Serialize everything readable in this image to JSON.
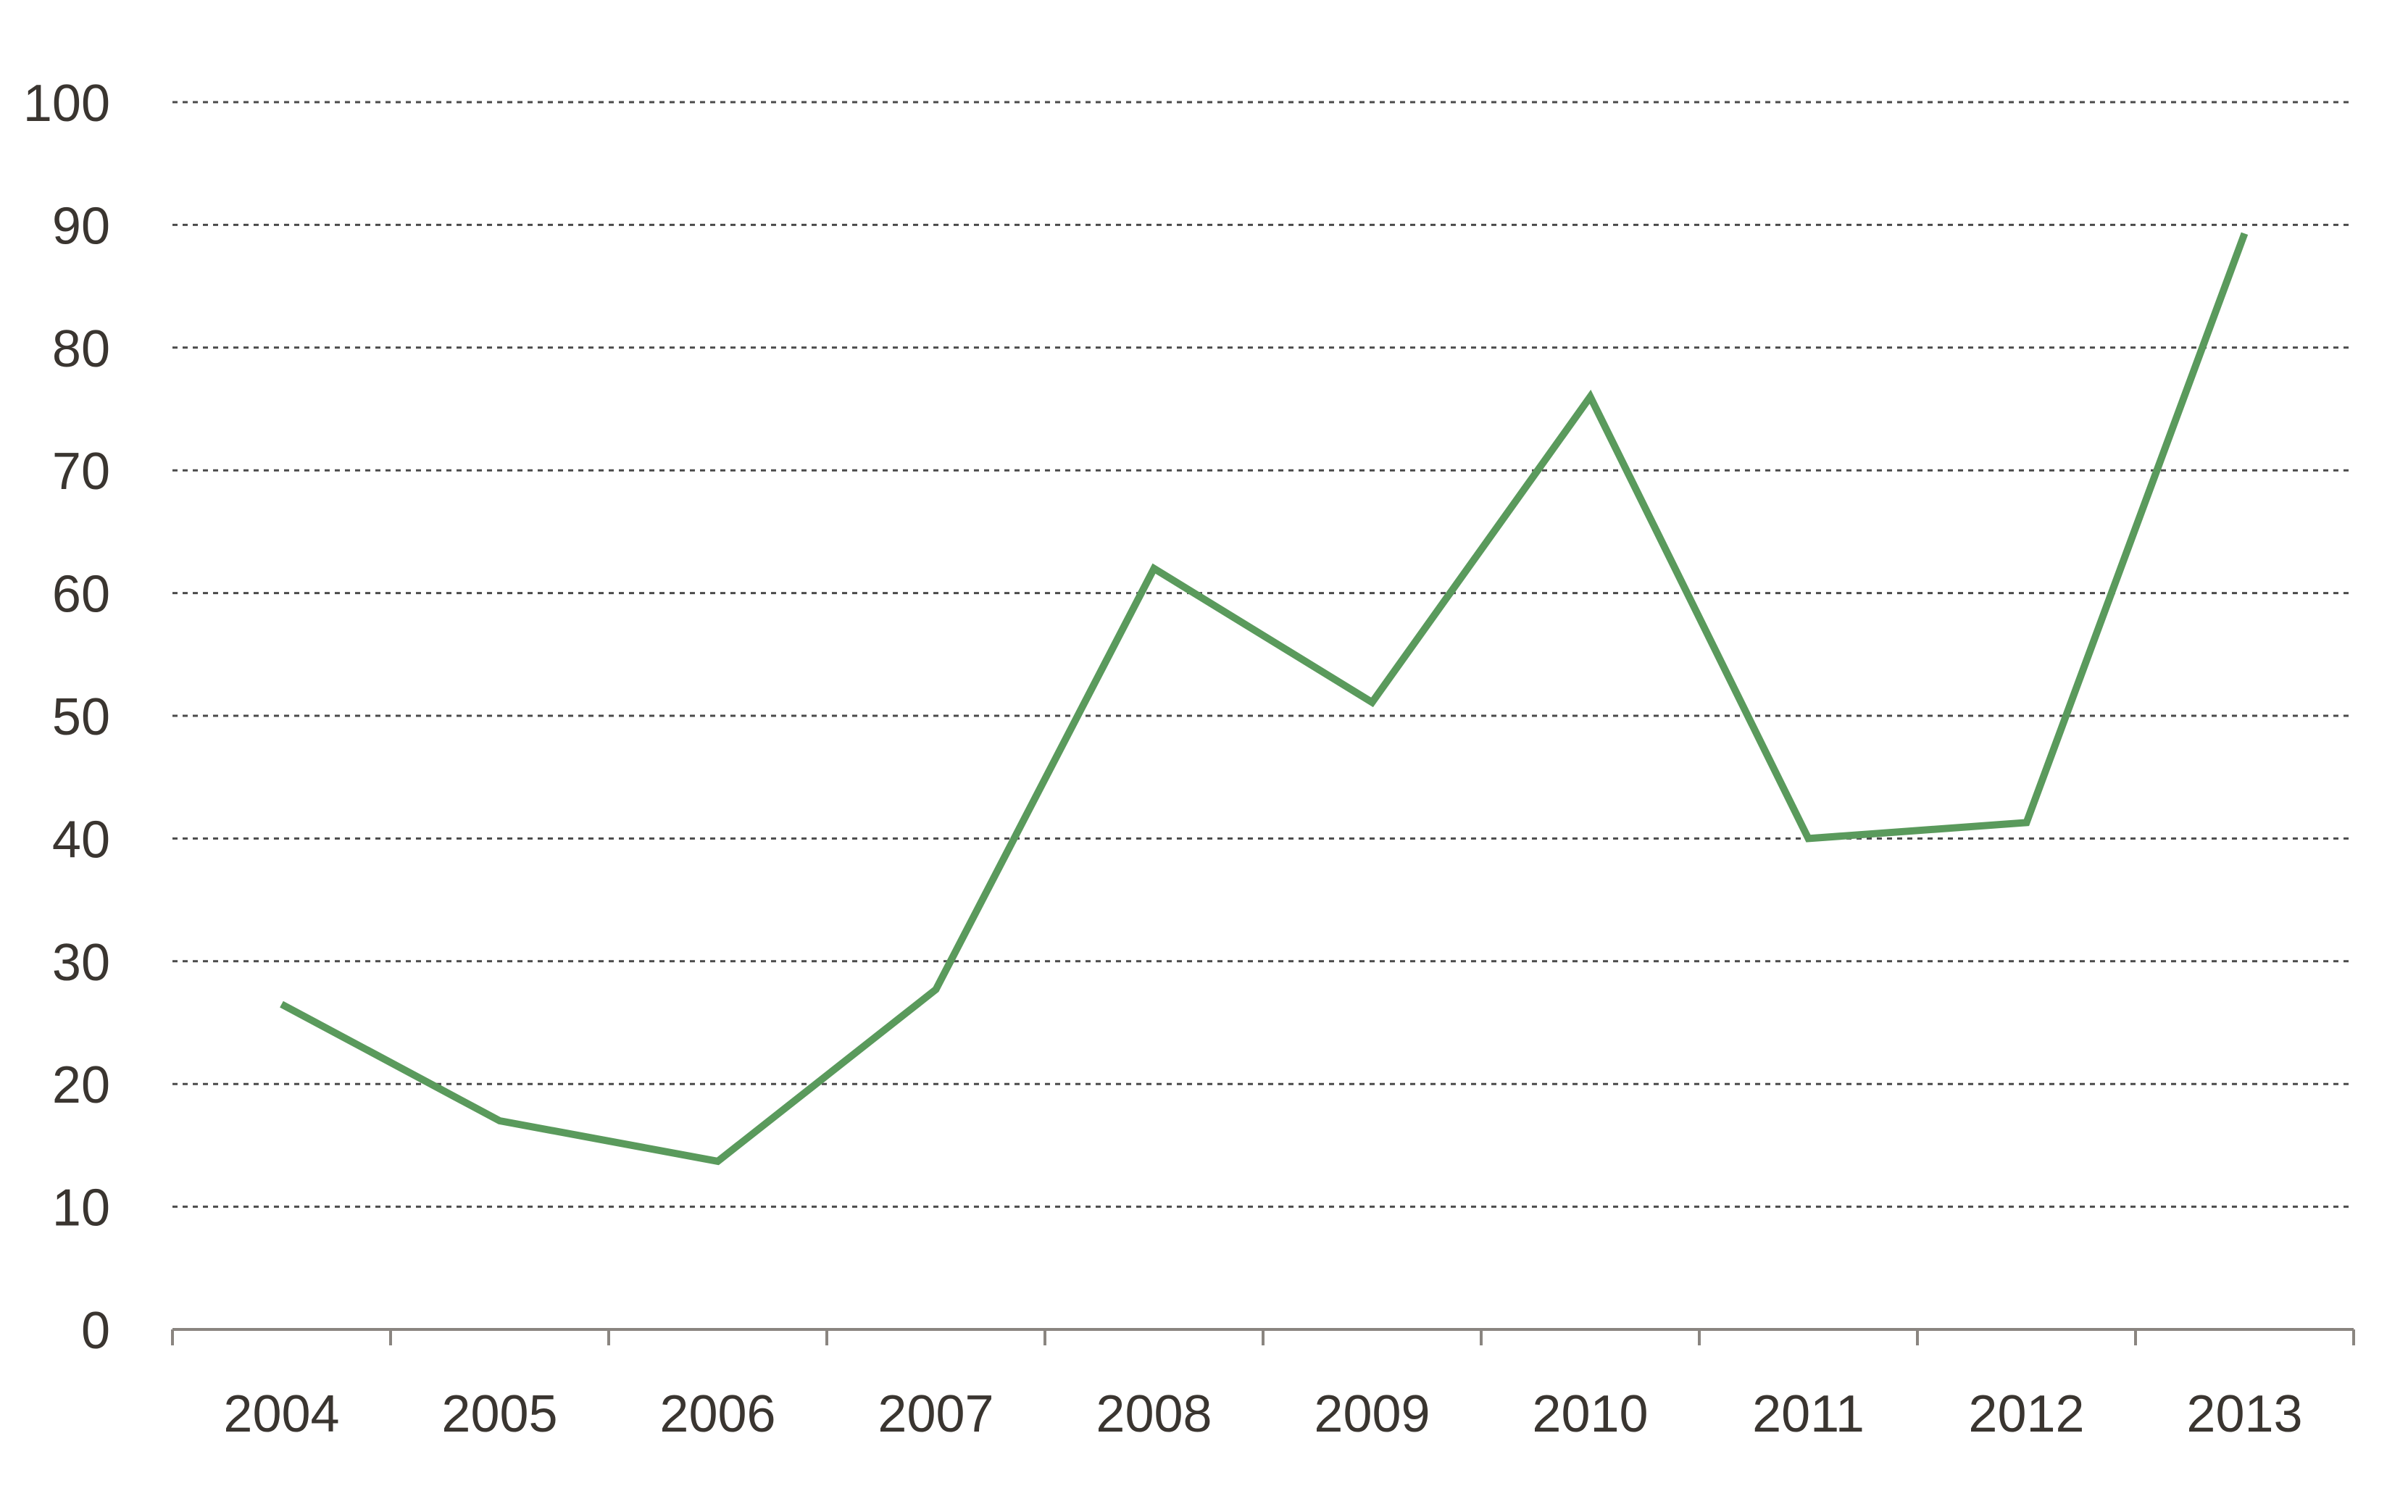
{
  "chart_data": {
    "type": "line",
    "title": "",
    "xlabel": "",
    "ylabel": "",
    "categories": [
      "2004",
      "2005",
      "2006",
      "2007",
      "2008",
      "2009",
      "2010",
      "2011",
      "2012",
      "2013"
    ],
    "series": [
      {
        "values": [
          26.5,
          17,
          13.7,
          27.7,
          62,
          51.1,
          76,
          40,
          41.3,
          89.3
        ]
      }
    ],
    "ylim": [
      0,
      100
    ],
    "yticks": [
      0,
      10,
      20,
      30,
      40,
      50,
      60,
      70,
      80,
      90,
      100
    ],
    "grid": "horizontal dashed",
    "legend": "none",
    "colors": {
      "line": "#5a9a5c",
      "grid": "#4a4a4a",
      "axis": "#8a8580",
      "text": "#3a3530"
    }
  }
}
